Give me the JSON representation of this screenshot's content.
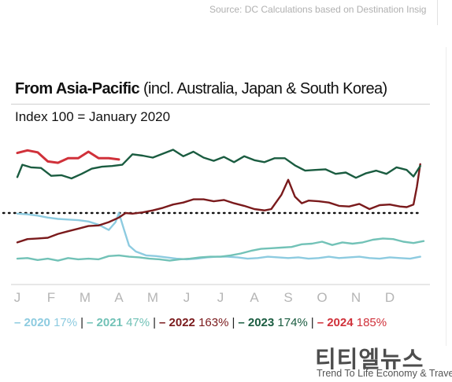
{
  "source": "Source: DC Calculations based on Destination Insig",
  "title_bold": "From Asia-Pacific",
  "title_rest": " (incl. Australia, Japan & South Korea)",
  "subtitle": "Index 100 = January 2020",
  "watermark": {
    "name": "티티엘뉴스",
    "tagline": "Trend To Life Economy & Travel"
  },
  "chart_data": {
    "type": "line",
    "x": [
      "J",
      "F",
      "M",
      "A",
      "M",
      "J",
      "J",
      "A",
      "S",
      "O",
      "N",
      "D"
    ],
    "ylim": [
      0,
      200
    ],
    "reference_line": 100,
    "series": [
      {
        "name": "2020",
        "pct_label": "17%",
        "color": "#8dcbe0",
        "x": [
          0,
          0.3,
          0.6,
          0.9,
          1.2,
          1.5,
          1.8,
          2.1,
          2.4,
          2.7,
          2.9,
          3.0,
          3.15,
          3.3,
          3.5,
          3.8,
          4.1,
          4.4,
          4.7,
          5.0,
          5.3,
          5.6,
          5.9,
          6.2,
          6.5,
          6.8,
          7.1,
          7.4,
          7.7,
          8.0,
          8.3,
          8.6,
          8.9,
          9.2,
          9.5,
          9.8,
          10.1,
          10.4,
          10.7,
          11.0,
          11.3,
          11.6,
          11.9
        ],
        "y": [
          99,
          98,
          96,
          93,
          91,
          90,
          89,
          87,
          82,
          74,
          86,
          100,
          75,
          50,
          41,
          35,
          34,
          32,
          30,
          29,
          30,
          32,
          33,
          33,
          32,
          30,
          31,
          33,
          32,
          31,
          32,
          30,
          31,
          33,
          31,
          32,
          33,
          31,
          30,
          32,
          31,
          30,
          33
        ]
      },
      {
        "name": "2021",
        "pct_label": "47%",
        "color": "#72c2b7",
        "x": [
          0,
          0.3,
          0.6,
          0.9,
          1.2,
          1.5,
          1.8,
          2.1,
          2.4,
          2.7,
          3.0,
          3.3,
          3.6,
          3.9,
          4.2,
          4.5,
          4.8,
          5.1,
          5.4,
          5.7,
          6.0,
          6.3,
          6.6,
          6.9,
          7.2,
          7.5,
          7.8,
          8.1,
          8.4,
          8.7,
          9.0,
          9.3,
          9.6,
          9.9,
          10.2,
          10.5,
          10.8,
          11.1,
          11.4,
          11.7,
          12.0
        ],
        "y": [
          30,
          31,
          28,
          30,
          27,
          31,
          29,
          30,
          29,
          34,
          35,
          33,
          32,
          30,
          29,
          27,
          29,
          30,
          32,
          33,
          33,
          35,
          38,
          42,
          45,
          46,
          47,
          48,
          52,
          53,
          56,
          51,
          55,
          53,
          55,
          59,
          61,
          60,
          56,
          54,
          57
        ]
      },
      {
        "name": "2022",
        "pct_label": "163%",
        "color": "#7a1a1c",
        "x": [
          0,
          0.3,
          0.6,
          0.9,
          1.2,
          1.5,
          1.8,
          2.1,
          2.4,
          2.7,
          3.0,
          3.2,
          3.4,
          3.7,
          4.0,
          4.3,
          4.6,
          4.9,
          5.2,
          5.5,
          5.8,
          6.1,
          6.4,
          6.7,
          7.0,
          7.3,
          7.5,
          7.8,
          8.0,
          8.2,
          8.4,
          8.6,
          8.9,
          9.2,
          9.5,
          9.8,
          10.1,
          10.4,
          10.7,
          11.0,
          11.3,
          11.5,
          11.7,
          11.8,
          11.9
        ],
        "y": [
          55,
          60,
          61,
          62,
          68,
          72,
          76,
          80,
          81,
          86,
          93,
          100,
          99,
          101,
          104,
          108,
          113,
          116,
          121,
          121,
          118,
          120,
          115,
          111,
          106,
          104,
          106,
          128,
          151,
          125,
          115,
          119,
          118,
          116,
          111,
          110,
          114,
          106,
          112,
          113,
          110,
          109,
          113,
          140,
          175
        ]
      },
      {
        "name": "2023",
        "pct_label": "174%",
        "color": "#1a5c40",
        "x": [
          0,
          0.15,
          0.4,
          0.7,
          1.0,
          1.3,
          1.6,
          1.9,
          2.2,
          2.5,
          2.8,
          3.1,
          3.4,
          3.7,
          4.0,
          4.3,
          4.6,
          4.9,
          5.2,
          5.5,
          5.8,
          6.1,
          6.4,
          6.7,
          7.0,
          7.3,
          7.6,
          7.9,
          8.2,
          8.5,
          8.8,
          9.1,
          9.4,
          9.7,
          10.0,
          10.3,
          10.6,
          10.9,
          11.2,
          11.5,
          11.7,
          11.9
        ],
        "y": [
          155,
          174,
          170,
          169,
          157,
          158,
          153,
          160,
          168,
          171,
          172,
          174,
          190,
          188,
          185,
          191,
          197,
          187,
          194,
          185,
          180,
          186,
          178,
          187,
          181,
          178,
          184,
          184,
          173,
          165,
          166,
          167,
          160,
          162,
          154,
          161,
          165,
          160,
          170,
          166,
          156,
          172
        ]
      },
      {
        "name": "2024",
        "pct_label": "185%",
        "color": "#d0313a",
        "x": [
          0,
          0.3,
          0.6,
          0.9,
          1.2,
          1.5,
          1.8,
          2.1,
          2.4,
          2.7,
          3.0
        ],
        "y": [
          192,
          196,
          193,
          179,
          177,
          184,
          184,
          194,
          184,
          184,
          182
        ]
      }
    ]
  }
}
